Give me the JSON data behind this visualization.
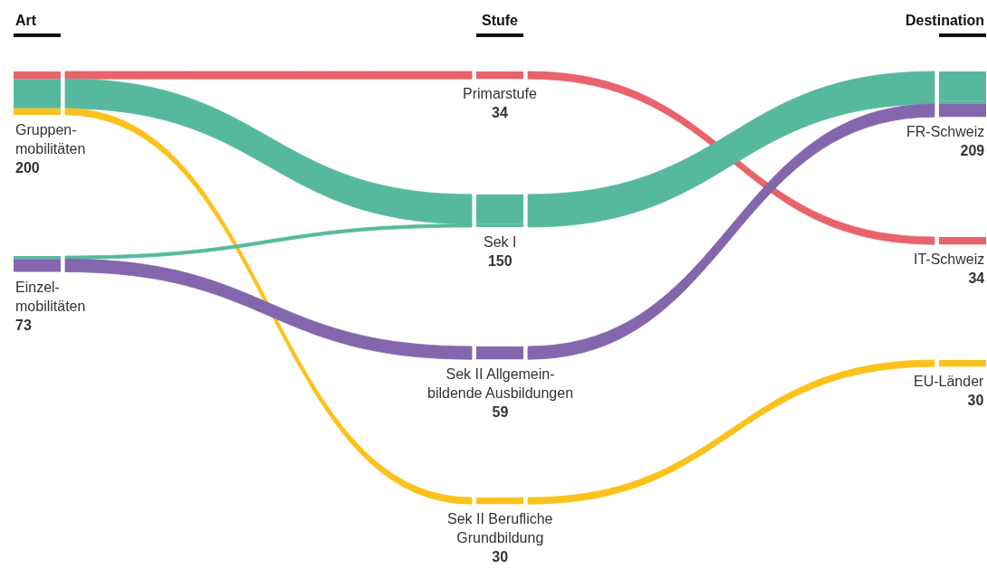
{
  "chart_data": {
    "type": "other",
    "annotations": [
      "Art",
      "Stufe",
      "Destination"
    ],
    "categories": [
      "Gruppen-\nmobilitäten",
      "Einzel-\nmobilitäten",
      "Primarstufe",
      "Sek I",
      "Sek II Allgemein-\nbildende Ausbildungen",
      "Sek II Berufliche\nGrundbildung",
      "FR-Schweiz",
      "IT-Schweiz",
      "EU-Länder"
    ],
    "values": [
      200,
      73,
      34,
      150,
      59,
      30,
      209,
      34,
      30
    ],
    "data_labels": true,
    "series": [
      {
        "color": "#e8636a",
        "x": [
          "Gruppen-\nmobilitäten",
          "Primarstufe",
          "IT-Schweiz"
        ],
        "values": [
          null,
          null,
          null
        ]
      },
      {
        "color": "#56b99d",
        "x": [
          "Gruppen-\nmobilitäten",
          "Sek I",
          "FR-Schweiz"
        ],
        "values": [
          null,
          null,
          null
        ]
      },
      {
        "color": "#fbc21c",
        "x": [
          "Gruppen-\nmobilitäten",
          "Sek II Berufliche\nGrundbildung",
          "EU-Länder"
        ],
        "values": [
          null,
          null,
          null
        ]
      },
      {
        "color": "#56b99d",
        "x": [
          "Einzel-\nmobilitäten",
          "Sek I",
          "FR-Schweiz"
        ],
        "values": [
          null,
          null,
          null
        ]
      },
      {
        "color": "#8466ad",
        "x": [
          "Einzel-\nmobilitäten",
          "Sek II Allgemein-\nbildende Ausbildungen",
          "FR-Schweiz"
        ],
        "values": [
          null,
          null,
          null
        ]
      }
    ]
  }
}
